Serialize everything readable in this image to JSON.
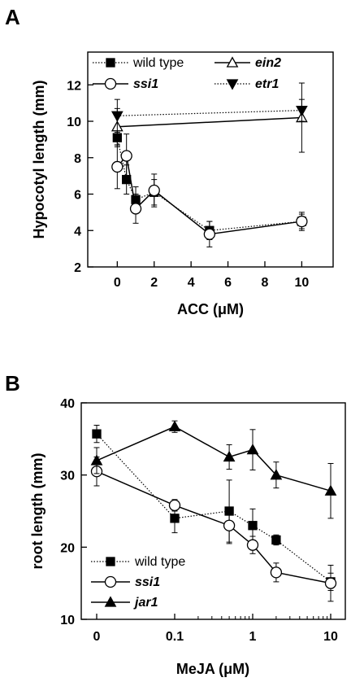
{
  "chart_data": [
    {
      "panel": "A",
      "type": "line",
      "xlabel": "ACC (μM)",
      "ylabel": "Hypocotyl length (mm)",
      "xlim": [
        -1.6,
        11.7
      ],
      "ylim": [
        2,
        13.8
      ],
      "xticks": [
        0,
        2,
        4,
        6,
        8,
        10
      ],
      "yticks": [
        2,
        4,
        6,
        8,
        10,
        12
      ],
      "legend_position": "top",
      "series": [
        {
          "name": "wild type",
          "marker": "square",
          "fill": "filled",
          "line": "dotted",
          "x": [
            0,
            0.5,
            1,
            2,
            5,
            10
          ],
          "y": [
            9.1,
            6.8,
            5.7,
            6.1,
            4.0,
            4.5
          ],
          "err": [
            0.5,
            0.8,
            0.7,
            0.7,
            0.5,
            0.4
          ]
        },
        {
          "name": "ssi1",
          "marker": "circle",
          "fill": "open",
          "line": "solid",
          "x": [
            0,
            0.5,
            1,
            2,
            5,
            10
          ],
          "y": [
            7.5,
            8.1,
            5.2,
            6.2,
            3.8,
            4.5
          ],
          "err": [
            1.2,
            1.2,
            0.8,
            0.9,
            0.7,
            0.5
          ]
        },
        {
          "name": "ein2",
          "marker": "triangle-up",
          "fill": "open",
          "line": "solid",
          "x": [
            0,
            10
          ],
          "y": [
            9.7,
            10.2
          ],
          "err": [
            1.0,
            1.9
          ]
        },
        {
          "name": "etr1",
          "marker": "triangle-down",
          "fill": "filled",
          "line": "dotted",
          "x": [
            0,
            10
          ],
          "y": [
            10.3,
            10.6
          ],
          "err": [
            0.9,
            0.6
          ]
        }
      ]
    },
    {
      "panel": "B",
      "type": "line",
      "xlabel": "MeJA (μM)",
      "ylabel": "root length (mm)",
      "xscale": "log",
      "ylim": [
        10,
        40
      ],
      "xticks": [
        "0",
        "0.1",
        "1",
        "10"
      ],
      "yticks": [
        10,
        20,
        30,
        40
      ],
      "legend_position": "bottom-left",
      "series": [
        {
          "name": "wild type",
          "marker": "square",
          "fill": "filled",
          "line": "dotted",
          "x": [
            0,
            0.1,
            0.5,
            1,
            2,
            10
          ],
          "y": [
            35.7,
            24.0,
            25.0,
            23.0,
            21.0,
            15.2
          ],
          "err": [
            1.2,
            2.0,
            4.3,
            2.3,
            0.7,
            1.2
          ]
        },
        {
          "name": "ssi1",
          "marker": "circle",
          "fill": "open",
          "line": "solid",
          "x": [
            0,
            0.1,
            0.5,
            1,
            2,
            10
          ],
          "y": [
            30.5,
            25.8,
            23.0,
            20.3,
            16.5,
            15.0
          ],
          "err": [
            2.0,
            0.8,
            2.5,
            1.2,
            1.3,
            2.5
          ]
        },
        {
          "name": "jar1",
          "marker": "triangle-up",
          "fill": "filled",
          "line": "solid",
          "x": [
            0,
            0.1,
            0.5,
            1,
            2,
            10
          ],
          "y": [
            32.0,
            36.7,
            32.5,
            33.5,
            30.0,
            27.8
          ],
          "err": [
            1.8,
            0.8,
            1.7,
            2.8,
            1.8,
            3.8
          ]
        }
      ]
    }
  ],
  "labels": {
    "panel_a": "A",
    "panel_b": "B"
  }
}
